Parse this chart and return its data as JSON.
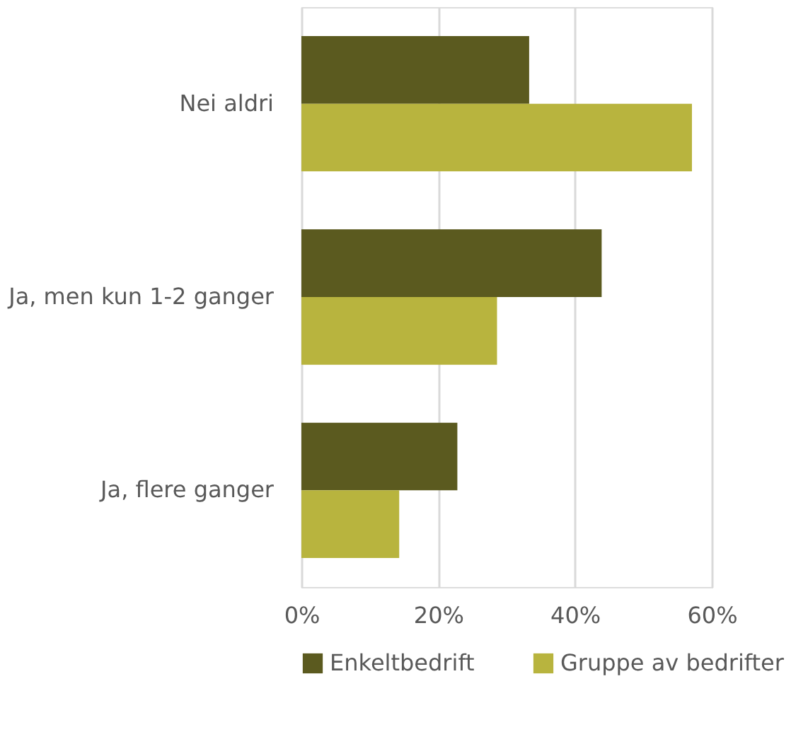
{
  "chart_data": {
    "type": "bar",
    "orientation": "horizontal",
    "categories": [
      "Nei aldri",
      "Ja, men kun 1-2 ganger",
      "Ja, flere ganger"
    ],
    "series": [
      {
        "name": "Enkeltbedrift",
        "color": "#5b5a1f",
        "values": [
          33.3,
          43.9,
          22.8
        ]
      },
      {
        "name": "Gruppe av bedrifter",
        "color": "#b8b43e",
        "values": [
          57.1,
          28.6,
          14.3
        ]
      }
    ],
    "xlim": [
      0,
      60
    ],
    "xticks": [
      {
        "value": 0,
        "label": "0%"
      },
      {
        "value": 20,
        "label": "20%"
      },
      {
        "value": 40,
        "label": "40%"
      },
      {
        "value": 60,
        "label": "60%"
      }
    ],
    "grid": "x",
    "legend": "bottom"
  }
}
